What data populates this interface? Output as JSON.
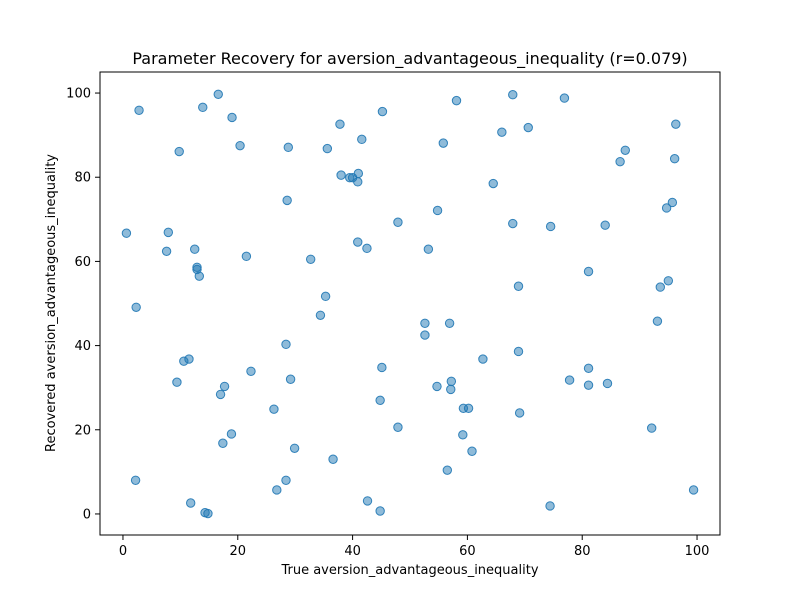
{
  "chart_data": {
    "type": "scatter",
    "title": "Parameter Recovery for aversion_advantageous_inequality (r=0.079)",
    "xlabel": "True aversion_advantageous_inequality",
    "ylabel": "Recovered aversion_advantageous_inequality",
    "xlim": [
      -4,
      104
    ],
    "ylim": [
      -5,
      105
    ],
    "xticks": [
      0,
      20,
      40,
      60,
      80,
      100
    ],
    "yticks": [
      0,
      20,
      40,
      60,
      80,
      100
    ],
    "x_tick_labels": [
      "0",
      "20",
      "40",
      "60",
      "80",
      "100"
    ],
    "y_tick_labels": [
      "0",
      "20",
      "40",
      "60",
      "80",
      "100"
    ],
    "grid": false,
    "marker_color": "#1f77b4",
    "marker_alpha": 0.5,
    "points": [
      [
        2.8,
        95.9
      ],
      [
        16.6,
        99.7
      ],
      [
        13.9,
        96.6
      ],
      [
        19.0,
        94.2
      ],
      [
        9.8,
        86.1
      ],
      [
        20.4,
        87.5
      ],
      [
        28.8,
        87.1
      ],
      [
        35.6,
        86.8
      ],
      [
        37.8,
        92.6
      ],
      [
        41.6,
        89.0
      ],
      [
        45.2,
        95.6
      ],
      [
        58.1,
        98.2
      ],
      [
        67.9,
        99.6
      ],
      [
        76.9,
        98.8
      ],
      [
        66.0,
        90.7
      ],
      [
        70.6,
        91.8
      ],
      [
        55.8,
        88.1
      ],
      [
        87.5,
        86.4
      ],
      [
        86.6,
        83.7
      ],
      [
        96.3,
        92.6
      ],
      [
        96.1,
        84.4
      ],
      [
        38.0,
        80.5
      ],
      [
        39.5,
        79.9
      ],
      [
        40.0,
        79.9
      ],
      [
        41.0,
        80.9
      ],
      [
        40.9,
        78.9
      ],
      [
        64.5,
        78.5
      ],
      [
        28.6,
        74.5
      ],
      [
        47.9,
        69.3
      ],
      [
        54.8,
        72.1
      ],
      [
        67.9,
        69.0
      ],
      [
        74.5,
        68.3
      ],
      [
        84.0,
        68.6
      ],
      [
        95.7,
        74.0
      ],
      [
        94.7,
        72.7
      ],
      [
        0.6,
        66.7
      ],
      [
        7.9,
        66.9
      ],
      [
        7.6,
        62.4
      ],
      [
        12.5,
        62.9
      ],
      [
        21.5,
        61.2
      ],
      [
        32.7,
        60.5
      ],
      [
        40.9,
        64.6
      ],
      [
        42.5,
        63.1
      ],
      [
        53.2,
        62.9
      ],
      [
        12.9,
        58.6
      ],
      [
        12.9,
        58.1
      ],
      [
        13.3,
        56.5
      ],
      [
        2.3,
        49.1
      ],
      [
        35.3,
        51.7
      ],
      [
        34.4,
        47.2
      ],
      [
        52.6,
        45.3
      ],
      [
        52.6,
        42.5
      ],
      [
        56.9,
        45.3
      ],
      [
        68.9,
        54.1
      ],
      [
        81.1,
        57.6
      ],
      [
        93.6,
        53.9
      ],
      [
        95.0,
        55.4
      ],
      [
        93.1,
        45.8
      ],
      [
        28.4,
        40.3
      ],
      [
        10.6,
        36.3
      ],
      [
        11.5,
        36.8
      ],
      [
        9.4,
        31.3
      ],
      [
        22.3,
        33.9
      ],
      [
        17.7,
        30.3
      ],
      [
        17.0,
        28.4
      ],
      [
        29.2,
        32.0
      ],
      [
        45.1,
        34.8
      ],
      [
        44.8,
        27.0
      ],
      [
        54.7,
        30.3
      ],
      [
        57.2,
        31.5
      ],
      [
        57.1,
        29.6
      ],
      [
        62.7,
        36.8
      ],
      [
        68.9,
        38.6
      ],
      [
        77.8,
        31.8
      ],
      [
        81.1,
        34.6
      ],
      [
        81.1,
        30.6
      ],
      [
        84.4,
        31.0
      ],
      [
        26.3,
        24.9
      ],
      [
        18.9,
        19.0
      ],
      [
        17.4,
        16.8
      ],
      [
        29.9,
        15.6
      ],
      [
        47.9,
        20.6
      ],
      [
        59.3,
        25.1
      ],
      [
        60.2,
        25.1
      ],
      [
        69.1,
        24.0
      ],
      [
        59.2,
        18.8
      ],
      [
        60.8,
        14.9
      ],
      [
        92.1,
        20.4
      ],
      [
        36.6,
        13.0
      ],
      [
        56.5,
        10.4
      ],
      [
        2.2,
        8.0
      ],
      [
        28.4,
        8.0
      ],
      [
        26.8,
        5.7
      ],
      [
        11.8,
        2.6
      ],
      [
        14.3,
        0.3
      ],
      [
        14.8,
        0.1
      ],
      [
        42.6,
        3.1
      ],
      [
        44.8,
        0.7
      ],
      [
        74.4,
        1.9
      ],
      [
        99.4,
        5.7
      ]
    ]
  }
}
